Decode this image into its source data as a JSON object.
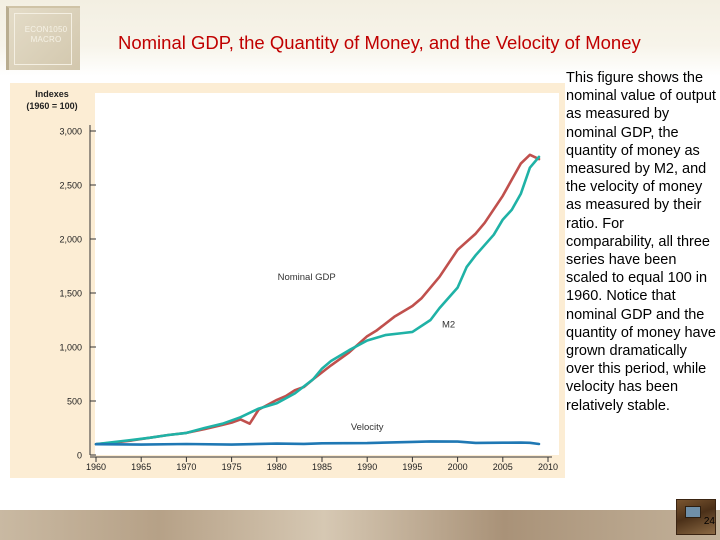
{
  "slide": {
    "logo_line1": "ECON1050",
    "logo_line2": "MACRO",
    "title": "Nominal GDP, the Quantity of Money, and the Velocity of Money",
    "description": "This figure shows the nominal value of output as measured by nominal GDP, the quantity of money as measured by M2, and the velocity of money as measured by their ratio. For comparability, all three series have been scaled to equal 100 in 1960. Notice that nominal GDP and the quantity of money have grown dramatically over this period, while velocity has been relatively stable.",
    "slide_number": "24"
  },
  "colors": {
    "gdp": "#c0504d",
    "m2": "#1fb2a6",
    "velocity": "#1f78b4",
    "axis": "#333333",
    "title": "#c00000"
  },
  "chart_data": {
    "type": "line",
    "ylabel_line1": "Indexes",
    "ylabel_line2": "(1960 = 100)",
    "xlim": [
      1960,
      2010
    ],
    "ylim": [
      0,
      3000
    ],
    "x_ticks": [
      1960,
      1965,
      1970,
      1975,
      1980,
      1985,
      1990,
      1995,
      2000,
      2005,
      2010
    ],
    "x_tick_labels": [
      "1960",
      "1965",
      "1970",
      "1975",
      "1980",
      "1985",
      "1990",
      "1995",
      "2000",
      "2005",
      "2010"
    ],
    "y_ticks": [
      0,
      500,
      1000,
      1500,
      2000,
      2500,
      3000
    ],
    "y_tick_labels": [
      "0",
      "500",
      "1,000",
      "1,500",
      "2,000",
      "2,500",
      "3,000"
    ],
    "series": [
      {
        "name": "Nominal GDP",
        "key": "gdp",
        "label": "Nominal GDP",
        "x": [
          1960,
          1962,
          1964,
          1966,
          1968,
          1970,
          1972,
          1974,
          1975,
          1976,
          1977,
          1978,
          1980,
          1981,
          1982,
          1983,
          1984,
          1986,
          1988,
          1990,
          1991,
          1993,
          1995,
          1996,
          1998,
          2000,
          2002,
          2003,
          2005,
          2006,
          2007,
          2008,
          2009
        ],
        "values": [
          100,
          115,
          135,
          160,
          185,
          205,
          240,
          280,
          300,
          330,
          290,
          420,
          510,
          545,
          600,
          630,
          700,
          830,
          950,
          1100,
          1150,
          1280,
          1380,
          1450,
          1650,
          1900,
          2050,
          2150,
          2400,
          2550,
          2700,
          2780,
          2740
        ]
      },
      {
        "name": "M2",
        "key": "m2",
        "label": "M2",
        "x": [
          1960,
          1962,
          1964,
          1966,
          1968,
          1970,
          1972,
          1974,
          1976,
          1978,
          1980,
          1982,
          1984,
          1985,
          1986,
          1988,
          1990,
          1992,
          1994,
          1995,
          1997,
          1998,
          2000,
          2001,
          2002,
          2004,
          2005,
          2006,
          2007,
          2008,
          2009
        ],
        "values": [
          100,
          120,
          140,
          160,
          185,
          205,
          250,
          290,
          350,
          430,
          480,
          570,
          700,
          800,
          870,
          970,
          1060,
          1110,
          1130,
          1140,
          1250,
          1360,
          1550,
          1740,
          1850,
          2040,
          2180,
          2270,
          2420,
          2660,
          2760
        ]
      },
      {
        "name": "Velocity",
        "key": "velocity",
        "label": "Velocity",
        "x": [
          1960,
          1965,
          1970,
          1975,
          1980,
          1983,
          1985,
          1990,
          1995,
          1997,
          2000,
          2002,
          2005,
          2007,
          2008,
          2009
        ],
        "values": [
          100,
          96,
          102,
          96,
          106,
          103,
          108,
          110,
          121,
          126,
          124,
          112,
          114,
          115,
          113,
          102
        ]
      }
    ]
  }
}
